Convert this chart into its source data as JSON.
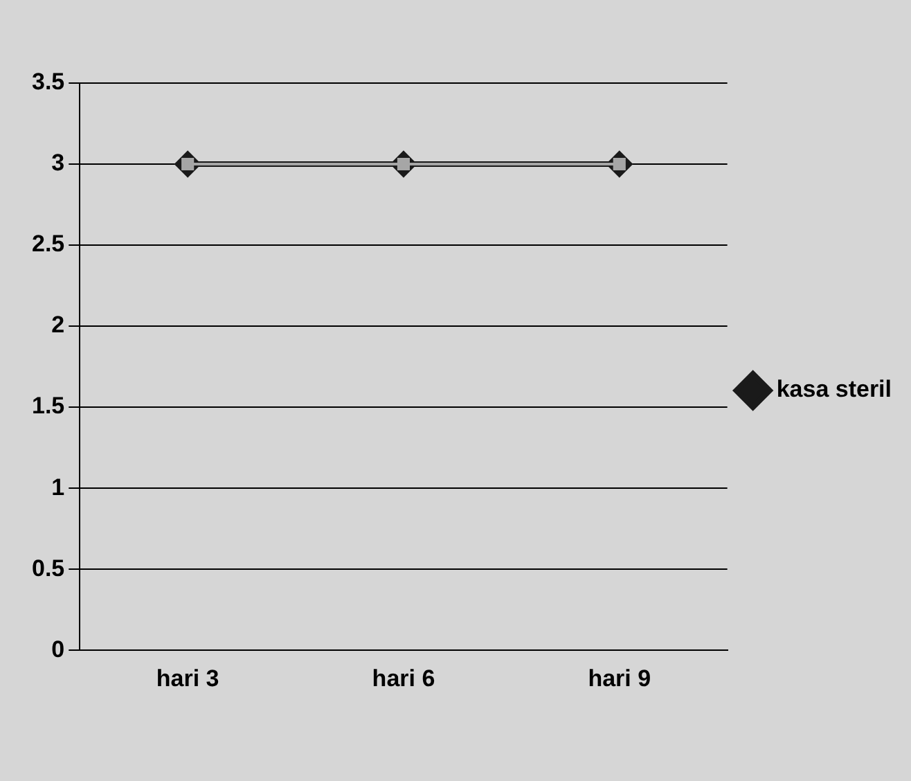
{
  "chart_data": {
    "type": "line",
    "categories": [
      "hari 3",
      "hari 6",
      "hari 9"
    ],
    "series": [
      {
        "name": "kasa steril",
        "color": "#1a1a1a",
        "values": [
          3,
          3,
          3
        ],
        "marker": "diamond"
      },
      {
        "color": "#a6a6a6",
        "values": [
          3,
          3,
          3
        ],
        "marker": "square"
      }
    ],
    "ylim": [
      0,
      3.5
    ],
    "yticks": [
      0,
      0.5,
      1,
      1.5,
      2,
      2.5,
      3,
      3.5
    ],
    "grid": "y",
    "legend": "right"
  }
}
